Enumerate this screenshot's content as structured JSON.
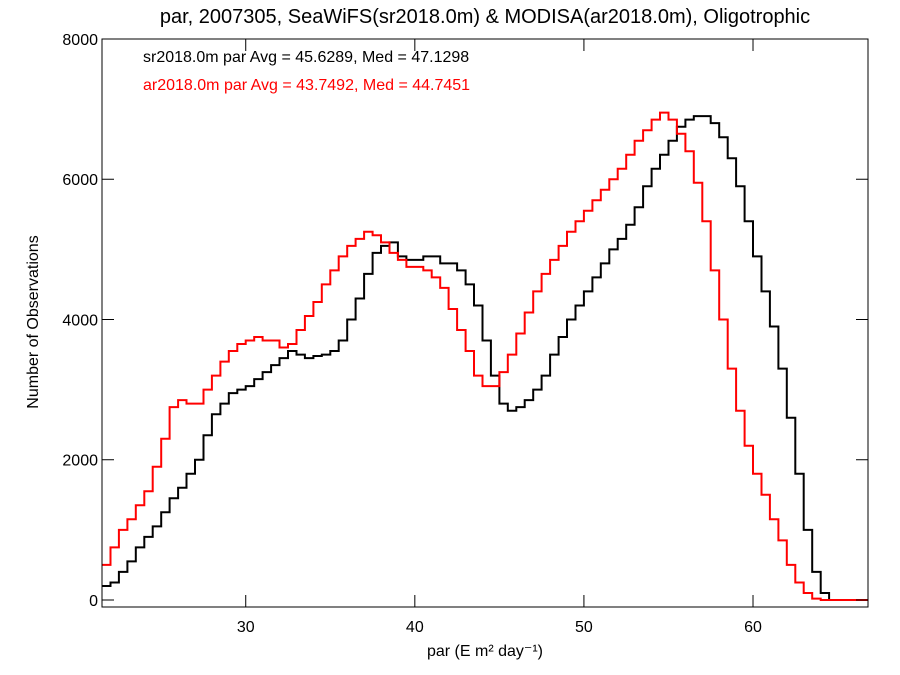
{
  "chart_data": {
    "type": "line",
    "step": true,
    "title": "par, 2007305, SeaWiFS(sr2018.0m) & MODISA(ar2018.0m), Oligotrophic",
    "xlabel": "par (E m² day⁻¹)",
    "ylabel": "Number of Observations",
    "xlim": [
      21.5,
      66.8
    ],
    "ylim": [
      -100,
      8000
    ],
    "xticks": [
      30,
      40,
      50,
      60
    ],
    "xtick_labels": [
      "30",
      "40",
      "50",
      "60"
    ],
    "yticks": [
      0,
      2000,
      4000,
      6000,
      8000
    ],
    "ytick_labels": [
      "0",
      "2000",
      "4000",
      "6000",
      "8000"
    ],
    "grid": false,
    "legend_position": "top-left",
    "series": [
      {
        "name": "sr2018.0m par Avg = 45.6289, Med = 47.1298",
        "color": "#000000",
        "points": [
          [
            21.5,
            200
          ],
          [
            22,
            250
          ],
          [
            22.5,
            400
          ],
          [
            23,
            550
          ],
          [
            23.5,
            750
          ],
          [
            24,
            900
          ],
          [
            24.5,
            1050
          ],
          [
            25,
            1250
          ],
          [
            25.5,
            1450
          ],
          [
            26,
            1600
          ],
          [
            26.5,
            1800
          ],
          [
            27,
            2000
          ],
          [
            27.5,
            2350
          ],
          [
            28,
            2650
          ],
          [
            28.5,
            2800
          ],
          [
            29,
            2950
          ],
          [
            29.5,
            3000
          ],
          [
            30,
            3050
          ],
          [
            30.5,
            3150
          ],
          [
            31,
            3250
          ],
          [
            31.5,
            3350
          ],
          [
            32,
            3450
          ],
          [
            32.5,
            3550
          ],
          [
            33,
            3500
          ],
          [
            33.5,
            3450
          ],
          [
            34,
            3480
          ],
          [
            34.5,
            3500
          ],
          [
            35,
            3550
          ],
          [
            35.5,
            3700
          ],
          [
            36,
            4000
          ],
          [
            36.5,
            4300
          ],
          [
            37,
            4650
          ],
          [
            37.5,
            4950
          ],
          [
            38,
            5050
          ],
          [
            38.5,
            5100
          ],
          [
            39,
            4900
          ],
          [
            39.5,
            4850
          ],
          [
            40,
            4850
          ],
          [
            40.5,
            4900
          ],
          [
            41,
            4900
          ],
          [
            41.5,
            4800
          ],
          [
            42,
            4800
          ],
          [
            42.5,
            4700
          ],
          [
            43,
            4500
          ],
          [
            43.5,
            4200
          ],
          [
            44,
            3700
          ],
          [
            44.5,
            3200
          ],
          [
            45,
            2800
          ],
          [
            45.5,
            2700
          ],
          [
            46,
            2750
          ],
          [
            46.5,
            2850
          ],
          [
            47,
            3000
          ],
          [
            47.5,
            3200
          ],
          [
            48,
            3500
          ],
          [
            48.5,
            3750
          ],
          [
            49,
            4000
          ],
          [
            49.5,
            4200
          ],
          [
            50,
            4400
          ],
          [
            50.5,
            4600
          ],
          [
            51,
            4800
          ],
          [
            51.5,
            5000
          ],
          [
            52,
            5150
          ],
          [
            52.5,
            5350
          ],
          [
            53,
            5600
          ],
          [
            53.5,
            5900
          ],
          [
            54,
            6150
          ],
          [
            54.5,
            6350
          ],
          [
            55,
            6550
          ],
          [
            55.5,
            6750
          ],
          [
            56,
            6850
          ],
          [
            56.5,
            6900
          ],
          [
            57,
            6900
          ],
          [
            57.5,
            6800
          ],
          [
            58,
            6600
          ],
          [
            58.5,
            6300
          ],
          [
            59,
            5900
          ],
          [
            59.5,
            5400
          ],
          [
            60,
            4900
          ],
          [
            60.5,
            4400
          ],
          [
            61,
            3900
          ],
          [
            61.5,
            3300
          ],
          [
            62,
            2600
          ],
          [
            62.5,
            1800
          ],
          [
            63,
            1000
          ],
          [
            63.5,
            400
          ],
          [
            64,
            100
          ],
          [
            64.5,
            0
          ],
          [
            65,
            0
          ],
          [
            66.8,
            0
          ]
        ]
      },
      {
        "name": "ar2018.0m par Avg = 43.7492, Med = 44.7451",
        "color": "#ff0000",
        "points": [
          [
            21.5,
            500
          ],
          [
            22,
            750
          ],
          [
            22.5,
            1000
          ],
          [
            23,
            1150
          ],
          [
            23.5,
            1350
          ],
          [
            24,
            1550
          ],
          [
            24.5,
            1900
          ],
          [
            25,
            2300
          ],
          [
            25.5,
            2750
          ],
          [
            26,
            2850
          ],
          [
            26.5,
            2800
          ],
          [
            27,
            2800
          ],
          [
            27.5,
            3000
          ],
          [
            28,
            3200
          ],
          [
            28.5,
            3400
          ],
          [
            29,
            3550
          ],
          [
            29.5,
            3650
          ],
          [
            30,
            3700
          ],
          [
            30.5,
            3750
          ],
          [
            31,
            3700
          ],
          [
            31.5,
            3700
          ],
          [
            32,
            3600
          ],
          [
            32.5,
            3650
          ],
          [
            33,
            3850
          ],
          [
            33.5,
            4050
          ],
          [
            34,
            4250
          ],
          [
            34.5,
            4500
          ],
          [
            35,
            4700
          ],
          [
            35.5,
            4900
          ],
          [
            36,
            5050
          ],
          [
            36.5,
            5150
          ],
          [
            37,
            5250
          ],
          [
            37.5,
            5200
          ],
          [
            38,
            5100
          ],
          [
            38.5,
            4950
          ],
          [
            39,
            4850
          ],
          [
            39.5,
            4750
          ],
          [
            40,
            4750
          ],
          [
            40.5,
            4700
          ],
          [
            41,
            4600
          ],
          [
            41.5,
            4450
          ],
          [
            42,
            4150
          ],
          [
            42.5,
            3850
          ],
          [
            43,
            3550
          ],
          [
            43.5,
            3200
          ],
          [
            44,
            3050
          ],
          [
            44.5,
            3050
          ],
          [
            45,
            3250
          ],
          [
            45.5,
            3500
          ],
          [
            46,
            3800
          ],
          [
            46.5,
            4100
          ],
          [
            47,
            4400
          ],
          [
            47.5,
            4650
          ],
          [
            48,
            4850
          ],
          [
            48.5,
            5050
          ],
          [
            49,
            5250
          ],
          [
            49.5,
            5400
          ],
          [
            50,
            5550
          ],
          [
            50.5,
            5700
          ],
          [
            51,
            5850
          ],
          [
            51.5,
            6000
          ],
          [
            52,
            6150
          ],
          [
            52.5,
            6350
          ],
          [
            53,
            6550
          ],
          [
            53.5,
            6700
          ],
          [
            54,
            6850
          ],
          [
            54.5,
            6950
          ],
          [
            55,
            6850
          ],
          [
            55.5,
            6650
          ],
          [
            56,
            6400
          ],
          [
            56.5,
            5950
          ],
          [
            57,
            5400
          ],
          [
            57.5,
            4700
          ],
          [
            58,
            4000
          ],
          [
            58.5,
            3300
          ],
          [
            59,
            2700
          ],
          [
            59.5,
            2200
          ],
          [
            60,
            1800
          ],
          [
            60.5,
            1500
          ],
          [
            61,
            1150
          ],
          [
            61.5,
            850
          ],
          [
            62,
            500
          ],
          [
            62.5,
            250
          ],
          [
            63,
            100
          ],
          [
            63.5,
            20
          ],
          [
            64,
            0
          ],
          [
            66.8,
            0
          ]
        ]
      }
    ]
  }
}
